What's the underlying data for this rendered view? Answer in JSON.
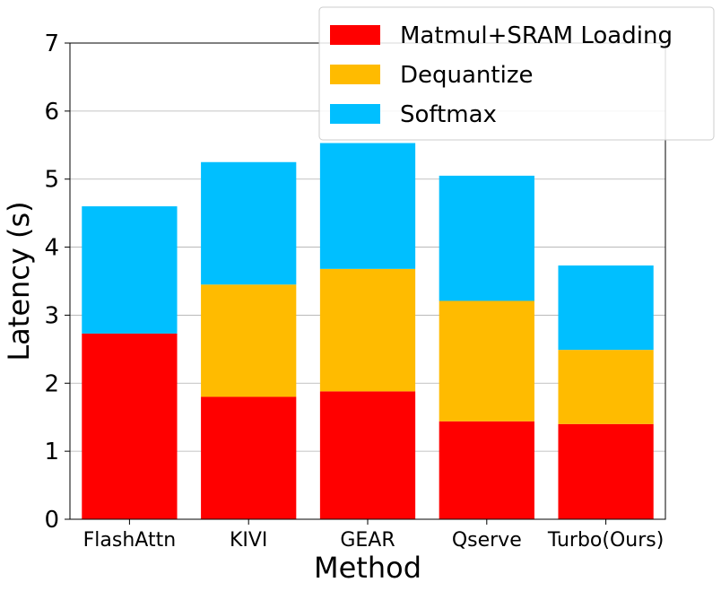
{
  "chart_data": {
    "type": "bar",
    "stacked": true,
    "title": "",
    "xlabel": "Method",
    "ylabel": "Latency (s)",
    "ylim": [
      0,
      7
    ],
    "yticks": [
      0,
      1,
      2,
      3,
      4,
      5,
      6,
      7
    ],
    "grid": "horizontal",
    "legend_position": "top-right",
    "categories": [
      "FlashAttn",
      "KIVI",
      "GEAR",
      "Qserve",
      "Turbo(Ours)"
    ],
    "series": [
      {
        "name": "Matmul+SRAM Loading",
        "color": "#ff0000",
        "values": [
          2.73,
          1.8,
          1.88,
          1.44,
          1.4
        ]
      },
      {
        "name": "Dequantize",
        "color": "#ffbb00",
        "values": [
          0,
          1.65,
          1.8,
          1.77,
          1.09
        ]
      },
      {
        "name": "Softmax",
        "color": "#00bfff",
        "values": [
          1.87,
          1.8,
          1.85,
          1.84,
          1.24
        ]
      }
    ]
  }
}
